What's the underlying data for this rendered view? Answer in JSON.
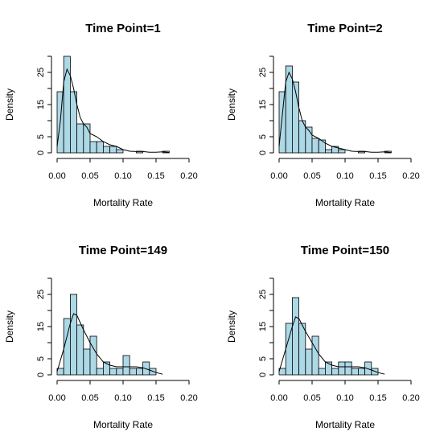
{
  "chart_data": [
    {
      "type": "histogram",
      "title": "Time Point=1",
      "xlabel": "Mortality Rate",
      "ylabel": "Density",
      "xlim": [
        0,
        0.2
      ],
      "ylim": [
        0,
        30
      ],
      "xticks": [
        "0.00",
        "0.05",
        "0.10",
        "0.15",
        "0.20"
      ],
      "yticks": [
        "0",
        "5",
        "15",
        "25"
      ],
      "bin_width": 0.01,
      "bins": [
        0,
        0.01,
        0.02,
        0.03,
        0.04,
        0.05,
        0.06,
        0.07,
        0.08,
        0.09,
        0.1,
        0.11,
        0.12,
        0.13,
        0.14,
        0.15,
        0.16,
        0.17
      ],
      "density_values": [
        19,
        30,
        19,
        9,
        9,
        3.5,
        3.5,
        2,
        2,
        1,
        0,
        0,
        0.5,
        0,
        0,
        0,
        0.5
      ],
      "curve_x": [
        0.0,
        0.005,
        0.01,
        0.015,
        0.02,
        0.025,
        0.03,
        0.035,
        0.04,
        0.045,
        0.05,
        0.06,
        0.07,
        0.08,
        0.09,
        0.1,
        0.11,
        0.12,
        0.13,
        0.14,
        0.15,
        0.16,
        0.17
      ],
      "curve_y": [
        2,
        10,
        22,
        26,
        24,
        20,
        15,
        11,
        9,
        8,
        6,
        5,
        3.5,
        2.5,
        2,
        1,
        0.5,
        0.4,
        0.4,
        0.2,
        0.2,
        0.3,
        0.1
      ]
    },
    {
      "type": "histogram",
      "title": "Time Point=2",
      "xlabel": "Mortality Rate",
      "ylabel": "Density",
      "xlim": [
        0,
        0.2
      ],
      "ylim": [
        0,
        30
      ],
      "xticks": [
        "0.00",
        "0.05",
        "0.10",
        "0.15",
        "0.20"
      ],
      "yticks": [
        "0",
        "5",
        "15",
        "25"
      ],
      "bin_width": 0.01,
      "bins": [
        0,
        0.01,
        0.02,
        0.03,
        0.04,
        0.05,
        0.06,
        0.07,
        0.08,
        0.09,
        0.1,
        0.11,
        0.12,
        0.13,
        0.14,
        0.15,
        0.16,
        0.17
      ],
      "density_values": [
        19,
        27,
        22,
        10,
        8,
        4.5,
        4,
        1,
        2,
        1,
        0,
        0,
        0.5,
        0,
        0,
        0,
        0.5
      ],
      "curve_x": [
        0.0,
        0.005,
        0.01,
        0.015,
        0.02,
        0.025,
        0.03,
        0.035,
        0.04,
        0.045,
        0.05,
        0.06,
        0.07,
        0.08,
        0.09,
        0.1,
        0.11,
        0.12,
        0.13,
        0.14,
        0.15,
        0.16,
        0.17
      ],
      "curve_y": [
        2,
        12,
        22,
        25,
        23,
        19,
        14,
        10,
        8,
        7,
        5.5,
        4.5,
        3,
        2,
        1.5,
        1,
        0.5,
        0.4,
        0.4,
        0.2,
        0.2,
        0.3,
        0.1
      ]
    },
    {
      "type": "histogram",
      "title": "Time Point=149",
      "xlabel": "Mortality Rate",
      "ylabel": "Density",
      "xlim": [
        0,
        0.2
      ],
      "ylim": [
        0,
        30
      ],
      "xticks": [
        "0.00",
        "0.05",
        "0.10",
        "0.15",
        "0.20"
      ],
      "yticks": [
        "0",
        "5",
        "15",
        "25"
      ],
      "bin_width": 0.01,
      "bins": [
        0,
        0.01,
        0.02,
        0.03,
        0.04,
        0.05,
        0.06,
        0.07,
        0.08,
        0.09,
        0.1,
        0.11,
        0.12,
        0.13,
        0.14
      ],
      "density_values": [
        2,
        17.5,
        25,
        15.5,
        8,
        12,
        2,
        4,
        2,
        2,
        6,
        2,
        2,
        4,
        2
      ],
      "curve_x": [
        0.0,
        0.01,
        0.02,
        0.025,
        0.03,
        0.04,
        0.05,
        0.06,
        0.07,
        0.08,
        0.09,
        0.1,
        0.11,
        0.12,
        0.13,
        0.14,
        0.15,
        0.16
      ],
      "curve_y": [
        1,
        8,
        16,
        19,
        18.5,
        14,
        10,
        6.5,
        4,
        3,
        2.5,
        2.5,
        2.5,
        2.5,
        2.2,
        1.5,
        0.7,
        0.2
      ]
    },
    {
      "type": "histogram",
      "title": "Time Point=150",
      "xlabel": "Mortality Rate",
      "ylabel": "Density",
      "xlim": [
        0,
        0.2
      ],
      "ylim": [
        0,
        30
      ],
      "xticks": [
        "0.00",
        "0.05",
        "0.10",
        "0.15",
        "0.20"
      ],
      "yticks": [
        "0",
        "5",
        "15",
        "25"
      ],
      "bin_width": 0.01,
      "bins": [
        0,
        0.01,
        0.02,
        0.03,
        0.04,
        0.05,
        0.06,
        0.07,
        0.08,
        0.09,
        0.1,
        0.11,
        0.12,
        0.13,
        0.14
      ],
      "density_values": [
        2,
        16,
        24,
        16,
        8,
        12,
        2,
        4,
        2,
        4,
        4,
        2,
        2,
        4,
        2
      ],
      "curve_x": [
        0.0,
        0.01,
        0.02,
        0.025,
        0.03,
        0.04,
        0.05,
        0.06,
        0.07,
        0.08,
        0.09,
        0.1,
        0.11,
        0.12,
        0.13,
        0.14,
        0.15,
        0.16
      ],
      "curve_y": [
        1,
        8,
        15,
        18,
        17.5,
        13.5,
        10,
        6.5,
        4,
        3,
        2.5,
        2.5,
        2.5,
        2.5,
        2.2,
        1.5,
        0.7,
        0.2
      ]
    }
  ]
}
